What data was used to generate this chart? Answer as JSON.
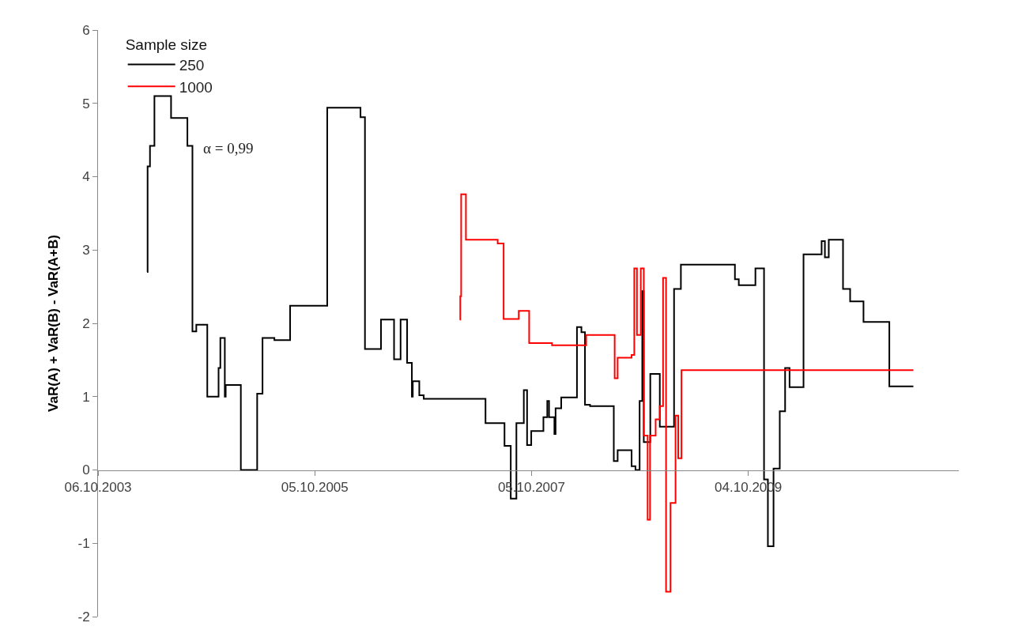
{
  "chart_data": {
    "type": "step",
    "ylabel": "VaR(A) + VaR(B) - VaR(A+B)",
    "legend_title": "Sample size",
    "legend": "top left",
    "grid": false,
    "marker": "none",
    "line_style": "solid",
    "annotations": [
      "α = 0,99"
    ],
    "xlim": [
      "2003-10-06",
      "2011-09-13"
    ],
    "xticks": [
      {
        "value": "2003-10-06",
        "label": "06.10.2003"
      },
      {
        "value": "2005-10-05",
        "label": "05.10.2005"
      },
      {
        "value": "2007-10-05",
        "label": "05.10.2007"
      },
      {
        "value": "2009-10-04",
        "label": "04.10.2009"
      }
    ],
    "ylim": [
      -2,
      6
    ],
    "yticks": [
      -2,
      -1,
      0,
      1,
      2,
      3,
      4,
      5,
      6
    ],
    "series": [
      {
        "name": "250",
        "color": "#000000",
        "x": [
          "2004-03-19",
          "2004-03-21",
          "2004-03-29",
          "2004-04-13",
          "2004-06-08",
          "2004-08-02",
          "2004-08-19",
          "2004-09-01",
          "2004-10-08",
          "2004-11-15",
          "2004-11-21",
          "2004-12-06",
          "2004-12-09",
          "2005-01-29",
          "2005-03-25",
          "2005-04-12",
          "2005-05-22",
          "2005-07-14",
          "2005-11-16",
          "2006-03-08",
          "2006-03-23",
          "2006-05-16",
          "2006-06-29",
          "2006-07-21",
          "2006-08-12",
          "2006-08-28",
          "2006-08-31",
          "2006-09-22",
          "2006-10-07",
          "2007-05-03",
          "2007-07-06",
          "2007-07-27",
          "2007-08-15",
          "2007-09-09",
          "2007-09-20",
          "2007-10-04",
          "2007-11-14",
          "2007-11-27",
          "2007-12-03",
          "2007-12-21",
          "2007-12-25",
          "2008-01-13",
          "2008-03-06",
          "2008-03-21",
          "2008-04-02",
          "2008-04-19",
          "2008-07-08",
          "2008-07-21",
          "2008-09-06",
          "2008-09-19",
          "2008-10-03",
          "2008-10-12",
          "2008-10-17",
          "2008-11-08",
          "2008-12-10",
          "2009-01-27",
          "2009-02-19",
          "2009-08-20",
          "2009-09-02",
          "2009-10-28",
          "2009-11-26",
          "2009-12-09",
          "2009-12-28",
          "2010-01-18",
          "2010-02-05",
          "2010-02-20",
          "2010-04-08",
          "2010-06-08",
          "2010-06-19",
          "2010-07-02",
          "2010-08-19",
          "2010-09-12",
          "2010-10-27",
          "2011-01-22",
          "2011-04-13"
        ],
        "values": [
          2.7,
          4.14,
          4.42,
          5.1,
          4.8,
          4.42,
          1.89,
          1.98,
          1.0,
          1.39,
          1.8,
          1.0,
          1.16,
          0,
          1.04,
          1.8,
          1.77,
          2.24,
          4.94,
          4.81,
          1.65,
          2.05,
          1.51,
          2.05,
          1.46,
          1.0,
          1.21,
          1.02,
          0.97,
          0.64,
          0.33,
          -0.39,
          0.64,
          1.09,
          0.34,
          0.53,
          0.72,
          0.94,
          0.72,
          0.49,
          0.84,
          0.99,
          1.95,
          1.88,
          0.89,
          0.87,
          0.12,
          0.27,
          0.05,
          0,
          0.94,
          2.44,
          0.38,
          1.31,
          0.59,
          2.47,
          2.8,
          2.6,
          2.52,
          2.75,
          -0.13,
          -1.04,
          0.02,
          0.8,
          1.39,
          1.13,
          2.94,
          3.12,
          2.9,
          3.14,
          2.47,
          2.3,
          2.02,
          1.14,
          1.14
        ]
      },
      {
        "name": "1000",
        "color": "#ff0000",
        "x": [
          "2007-02-05",
          "2007-02-07",
          "2007-02-10",
          "2007-02-26",
          "2007-06-13",
          "2007-07-03",
          "2007-08-23",
          "2007-09-27",
          "2007-12-13",
          "2008-04-06",
          "2008-07-11",
          "2008-07-21",
          "2008-09-06",
          "2008-09-15",
          "2008-09-24",
          "2008-10-07",
          "2008-10-17",
          "2008-10-30",
          "2008-11-07",
          "2008-11-26",
          "2008-12-10",
          "2008-12-21",
          "2008-12-31",
          "2009-01-15",
          "2009-02-01",
          "2009-02-10",
          "2009-02-21",
          "2011-04-13"
        ],
        "values": [
          2.05,
          2.37,
          3.76,
          3.14,
          3.09,
          2.06,
          2.17,
          1.73,
          1.7,
          1.84,
          1.25,
          1.53,
          1.57,
          2.75,
          1.84,
          2.75,
          0.47,
          -0.68,
          0.47,
          0.69,
          0.87,
          2.62,
          -1.66,
          -0.45,
          0.74,
          0.16,
          1.36,
          1.36
        ]
      }
    ]
  }
}
